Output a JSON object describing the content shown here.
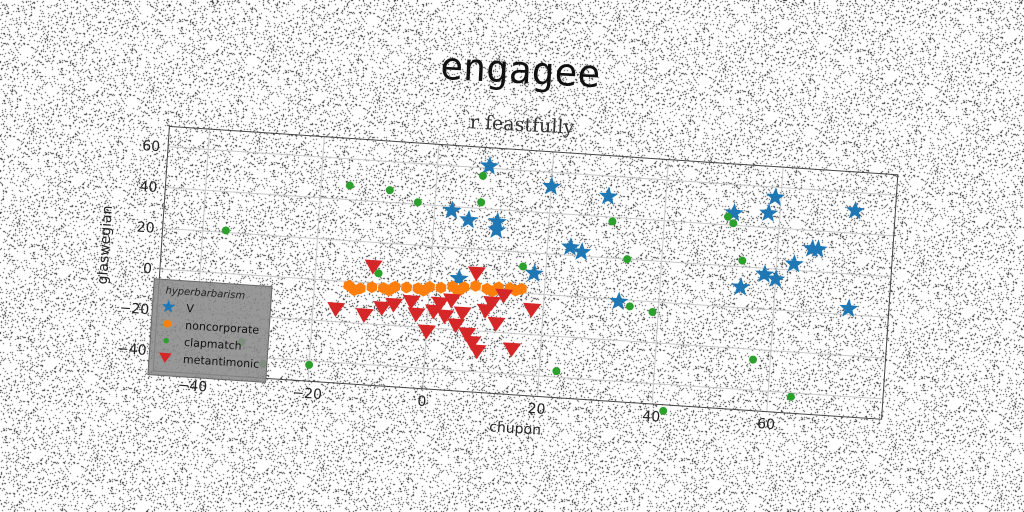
{
  "chart_data": {
    "type": "scatter",
    "title": "engagee",
    "subtitle": "r feastfully",
    "xlabel": "chupon",
    "ylabel": "glaswegian",
    "xlim": [
      -47,
      80
    ],
    "ylim": [
      -50,
      70
    ],
    "xticks": [
      -40,
      -20,
      0,
      20,
      40,
      60
    ],
    "yticks": [
      -40,
      -20,
      0,
      20,
      40,
      60
    ],
    "grid": true,
    "legend": {
      "title": "hyperbarbarism",
      "placement": "lower-left"
    },
    "series": [
      {
        "name": "V",
        "marker": "star",
        "color": "#1f77b4",
        "points": [
          [
            9,
            61
          ],
          [
            20,
            53
          ],
          [
            30,
            50
          ],
          [
            3,
            38
          ],
          [
            6,
            34
          ],
          [
            11,
            34
          ],
          [
            11,
            30
          ],
          [
            24,
            24
          ],
          [
            26,
            22
          ],
          [
            18,
            10
          ],
          [
            5,
            5
          ],
          [
            33,
            -1
          ],
          [
            52,
            46
          ],
          [
            58,
            47
          ],
          [
            59,
            55
          ],
          [
            73,
            51
          ],
          [
            66,
            31
          ],
          [
            67,
            31
          ],
          [
            63,
            23
          ],
          [
            58,
            17
          ],
          [
            60,
            15
          ],
          [
            54,
            10
          ],
          [
            73,
            3
          ]
        ]
      },
      {
        "name": "noncorporate",
        "marker": "hexagon",
        "color": "#ff7f0e",
        "points": [
          [
            -14,
            -2
          ],
          [
            -12,
            -3
          ],
          [
            -10,
            -2
          ],
          [
            -8,
            -2
          ],
          [
            -6,
            -1
          ],
          [
            -4,
            -1
          ],
          [
            -2,
            -1
          ],
          [
            0,
            0
          ],
          [
            2,
            0
          ],
          [
            4,
            1
          ],
          [
            6,
            1
          ],
          [
            8,
            2
          ],
          [
            10,
            1
          ],
          [
            12,
            2
          ],
          [
            14,
            2
          ],
          [
            16,
            2
          ],
          [
            -13,
            -4
          ],
          [
            -7,
            -3
          ],
          [
            -1,
            -2
          ],
          [
            5,
            -1
          ],
          [
            11,
            0
          ],
          [
            15,
            1
          ]
        ]
      },
      {
        "name": "clapmatch",
        "marker": "circle",
        "color": "#2ca02c",
        "points": [
          [
            -15,
            47
          ],
          [
            -8,
            46
          ],
          [
            -3,
            41
          ],
          [
            8,
            43
          ],
          [
            8,
            56
          ],
          [
            -36,
            21
          ],
          [
            -9,
            5
          ],
          [
            16,
            13
          ],
          [
            31,
            38
          ],
          [
            34,
            20
          ],
          [
            51,
            44
          ],
          [
            52,
            41
          ],
          [
            54,
            23
          ],
          [
            35,
            -3
          ],
          [
            39,
            -5
          ],
          [
            57,
            -25
          ],
          [
            23,
            -37
          ],
          [
            42,
            -53
          ],
          [
            64,
            -42
          ],
          [
            -20,
            -42
          ],
          [
            -28,
            -43
          ],
          [
            -32,
            -33
          ]
        ]
      },
      {
        "name": "metantimonic",
        "marker": "triangle-down",
        "color": "#d62728",
        "points": [
          [
            -10,
            8
          ],
          [
            -16,
            -14
          ],
          [
            -11,
            -16
          ],
          [
            -6,
            -10
          ],
          [
            -2,
            -14
          ],
          [
            1,
            -12
          ],
          [
            0,
            -22
          ],
          [
            3,
            -14
          ],
          [
            5,
            -18
          ],
          [
            7,
            -22
          ],
          [
            8,
            -26
          ],
          [
            10,
            -10
          ],
          [
            9,
            -30
          ],
          [
            12,
            -16
          ],
          [
            15,
            -28
          ],
          [
            18,
            -8
          ],
          [
            -3,
            -8
          ],
          [
            4,
            -6
          ],
          [
            11,
            -6
          ],
          [
            13,
            -2
          ],
          [
            8,
            8
          ],
          [
            -8,
            -12
          ],
          [
            6,
            -12
          ],
          [
            2,
            -8
          ]
        ]
      }
    ]
  }
}
